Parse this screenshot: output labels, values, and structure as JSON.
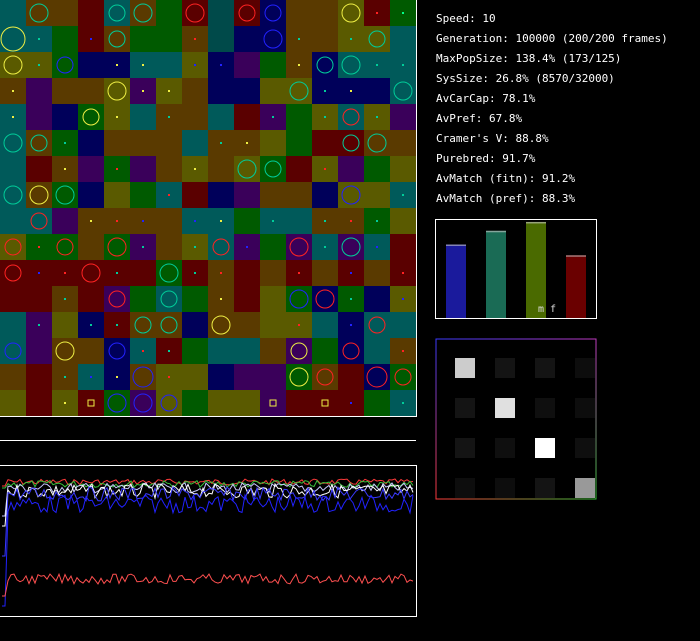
{
  "stats": [
    "Speed: 10",
    "Generation: 100000 (200/200 frames)",
    "MaxPopSize: 138.4% (173/125)",
    "SysSize: 26.8% (8570/32000)",
    "AvCarCap: 78.1%",
    "AvPref: 67.8%",
    "Cramer's V: 88.8%",
    "Purebred: 91.7%",
    "AvMatch (fitn): 91.2%",
    "AvMatch (pref): 88.3%"
  ],
  "bar_chart": {
    "bars": [
      {
        "value": 0.75,
        "color": "#1a1a9c"
      },
      {
        "value": 0.89,
        "color": "#1a6b55"
      },
      {
        "value": 0.98,
        "color": "#4a6a00"
      },
      {
        "value": 0.64,
        "color": "#6a0000"
      }
    ],
    "label": "m f"
  },
  "matrix": {
    "cells": [
      [
        0.8,
        0.08,
        0.08,
        0.05
      ],
      [
        0.08,
        0.88,
        0.06,
        0.05
      ],
      [
        0.08,
        0.06,
        1.0,
        0.06
      ],
      [
        0.05,
        0.05,
        0.08,
        0.6
      ]
    ]
  },
  "grid": {
    "cols": 16,
    "rows": 16,
    "palette": [
      "#00005a",
      "#005a5a",
      "#5a5a00",
      "#5a0000",
      "#3a005a",
      "#005a00",
      "#5a3a00",
      "#004a4a"
    ],
    "cells": [
      [
        1,
        6,
        6,
        3,
        1,
        6,
        5,
        3,
        7,
        3,
        0,
        6,
        6,
        2,
        3,
        5
      ],
      [
        1,
        1,
        5,
        3,
        6,
        5,
        5,
        6,
        7,
        0,
        0,
        6,
        6,
        2,
        2,
        1
      ],
      [
        2,
        2,
        5,
        0,
        0,
        1,
        1,
        2,
        0,
        4,
        5,
        6,
        0,
        1,
        1,
        1
      ],
      [
        6,
        4,
        6,
        6,
        2,
        4,
        2,
        6,
        0,
        0,
        2,
        2,
        0,
        0,
        0,
        1
      ],
      [
        1,
        4,
        0,
        5,
        2,
        1,
        6,
        6,
        1,
        3,
        4,
        5,
        2,
        1,
        2,
        4
      ],
      [
        1,
        6,
        5,
        0,
        6,
        6,
        6,
        1,
        6,
        6,
        2,
        5,
        3,
        3,
        6,
        6
      ],
      [
        1,
        3,
        6,
        4,
        5,
        4,
        6,
        2,
        6,
        2,
        5,
        3,
        2,
        4,
        5,
        2
      ],
      [
        1,
        6,
        5,
        0,
        2,
        5,
        1,
        3,
        0,
        4,
        6,
        6,
        0,
        2,
        2,
        1
      ],
      [
        1,
        1,
        4,
        6,
        6,
        6,
        6,
        1,
        1,
        5,
        1,
        1,
        6,
        6,
        5,
        2
      ],
      [
        2,
        5,
        5,
        6,
        5,
        4,
        6,
        2,
        1,
        4,
        5,
        4,
        1,
        4,
        1,
        3
      ],
      [
        3,
        3,
        3,
        3,
        3,
        3,
        5,
        3,
        6,
        3,
        6,
        3,
        6,
        3,
        6,
        3
      ],
      [
        3,
        3,
        6,
        3,
        4,
        5,
        1,
        5,
        6,
        3,
        2,
        5,
        0,
        5,
        0,
        2
      ],
      [
        1,
        4,
        2,
        0,
        3,
        6,
        6,
        0,
        6,
        6,
        2,
        2,
        1,
        0,
        1,
        1
      ],
      [
        1,
        4,
        6,
        6,
        0,
        1,
        3,
        5,
        1,
        1,
        6,
        4,
        5,
        0,
        1,
        6
      ],
      [
        6,
        3,
        6,
        1,
        0,
        6,
        2,
        2,
        0,
        4,
        4,
        5,
        6,
        3,
        0,
        5
      ],
      [
        2,
        3,
        2,
        3,
        5,
        4,
        2,
        5,
        2,
        2,
        4,
        3,
        3,
        3,
        5,
        1
      ]
    ],
    "circles": [
      [
        0,
        1,
        "#0c9",
        9
      ],
      [
        0,
        4,
        "#0c9",
        8
      ],
      [
        0,
        5,
        "#0c9",
        9
      ],
      [
        0,
        7,
        "#f22",
        9
      ],
      [
        0,
        9,
        "#f22",
        8
      ],
      [
        0,
        10,
        "#22f",
        8
      ],
      [
        0,
        13,
        "#ee4",
        9
      ],
      [
        0,
        14,
        "#f22",
        2
      ],
      [
        0,
        15,
        "#0f8",
        2
      ],
      [
        1,
        0,
        "#ee4",
        12
      ],
      [
        1,
        1,
        "#0c9",
        2
      ],
      [
        1,
        3,
        "#22f",
        2
      ],
      [
        1,
        4,
        "#0c9",
        8
      ],
      [
        1,
        7,
        "#f22",
        2
      ],
      [
        1,
        10,
        "#22f",
        9
      ],
      [
        1,
        11,
        "#0c9",
        2
      ],
      [
        1,
        13,
        "#0c9",
        2
      ],
      [
        1,
        14,
        "#0c9",
        8
      ],
      [
        2,
        0,
        "#ee4",
        9
      ],
      [
        2,
        1,
        "#0c9",
        2
      ],
      [
        2,
        2,
        "#22f",
        8
      ],
      [
        2,
        4,
        "#ee4",
        2
      ],
      [
        2,
        5,
        "#ee4",
        2
      ],
      [
        2,
        7,
        "#22f",
        2
      ],
      [
        2,
        8,
        "#22f",
        2
      ],
      [
        2,
        11,
        "#ee4",
        2
      ],
      [
        2,
        12,
        "#0c9",
        8
      ],
      [
        2,
        13,
        "#0c9",
        9
      ],
      [
        2,
        14,
        "#0c9",
        2
      ],
      [
        2,
        15,
        "#0c9",
        2
      ],
      [
        3,
        0,
        "#ee4",
        2
      ],
      [
        3,
        4,
        "#ee4",
        9
      ],
      [
        3,
        5,
        "#ee4",
        2
      ],
      [
        3,
        6,
        "#ee4",
        2
      ],
      [
        3,
        11,
        "#0c9",
        9
      ],
      [
        3,
        12,
        "#0c9",
        2
      ],
      [
        3,
        13,
        "#ee4",
        2
      ],
      [
        3,
        15,
        "#0c9",
        9
      ],
      [
        4,
        0,
        "#ee4",
        2
      ],
      [
        4,
        3,
        "#ee4",
        8
      ],
      [
        4,
        4,
        "#ee4",
        2
      ],
      [
        4,
        6,
        "#0c9",
        2
      ],
      [
        4,
        10,
        "#0c9",
        2
      ],
      [
        4,
        12,
        "#0c9",
        2
      ],
      [
        4,
        13,
        "#f22",
        8
      ],
      [
        4,
        14,
        "#0c9",
        2
      ],
      [
        5,
        0,
        "#0c9",
        9
      ],
      [
        5,
        1,
        "#0c9",
        8
      ],
      [
        5,
        2,
        "#0c9",
        2
      ],
      [
        5,
        8,
        "#0c9",
        2
      ],
      [
        5,
        9,
        "#ee4",
        2
      ],
      [
        5,
        13,
        "#0c9",
        8
      ],
      [
        5,
        14,
        "#0c9",
        9
      ],
      [
        6,
        2,
        "#ee4",
        2
      ],
      [
        6,
        4,
        "#f22",
        2
      ],
      [
        6,
        7,
        "#ee4",
        2
      ],
      [
        6,
        9,
        "#0c9",
        9
      ],
      [
        6,
        10,
        "#0c9",
        8
      ],
      [
        6,
        12,
        "#f22",
        2
      ],
      [
        7,
        0,
        "#0c9",
        9
      ],
      [
        7,
        1,
        "#ee4",
        9
      ],
      [
        7,
        2,
        "#0c9",
        9
      ],
      [
        7,
        6,
        "#f22",
        2
      ],
      [
        7,
        13,
        "#22f",
        9
      ],
      [
        7,
        15,
        "#0c9",
        2
      ],
      [
        8,
        1,
        "#f22",
        8
      ],
      [
        8,
        3,
        "#ee4",
        2
      ],
      [
        8,
        4,
        "#f22",
        2
      ],
      [
        8,
        5,
        "#22f",
        2
      ],
      [
        8,
        7,
        "#22f",
        2
      ],
      [
        8,
        8,
        "#ee4",
        2
      ],
      [
        8,
        10,
        "#0c9",
        2
      ],
      [
        8,
        12,
        "#0c9",
        2
      ],
      [
        8,
        13,
        "#f22",
        2
      ],
      [
        8,
        14,
        "#0c9",
        2
      ],
      [
        9,
        0,
        "#f22",
        8
      ],
      [
        9,
        1,
        "#f22",
        2
      ],
      [
        9,
        2,
        "#f22",
        8
      ],
      [
        9,
        4,
        "#f22",
        9
      ],
      [
        9,
        5,
        "#0c9",
        2
      ],
      [
        9,
        7,
        "#0c9",
        2
      ],
      [
        9,
        8,
        "#f22",
        8
      ],
      [
        9,
        9,
        "#22f",
        2
      ],
      [
        9,
        11,
        "#f22",
        9
      ],
      [
        9,
        12,
        "#0c9",
        2
      ],
      [
        9,
        13,
        "#0c9",
        9
      ],
      [
        9,
        14,
        "#22f",
        2
      ],
      [
        10,
        0,
        "#f22",
        8
      ],
      [
        10,
        1,
        "#22f",
        2
      ],
      [
        10,
        2,
        "#f22",
        2
      ],
      [
        10,
        3,
        "#f22",
        9
      ],
      [
        10,
        4,
        "#0c9",
        2
      ],
      [
        10,
        6,
        "#0c9",
        9
      ],
      [
        10,
        7,
        "#0c9",
        2
      ],
      [
        10,
        8,
        "#f22",
        2
      ],
      [
        10,
        11,
        "#f22",
        2
      ],
      [
        10,
        13,
        "#22f",
        2
      ],
      [
        10,
        15,
        "#f22",
        2
      ],
      [
        11,
        2,
        "#0c9",
        2
      ],
      [
        11,
        4,
        "#f22",
        8
      ],
      [
        11,
        6,
        "#0c9",
        8
      ],
      [
        11,
        8,
        "#ee4",
        2
      ],
      [
        11,
        11,
        "#22f",
        9
      ],
      [
        11,
        12,
        "#f22",
        9
      ],
      [
        11,
        13,
        "#0c9",
        2
      ],
      [
        11,
        15,
        "#22f",
        2
      ],
      [
        12,
        1,
        "#0c9",
        2
      ],
      [
        12,
        3,
        "#0c9",
        2
      ],
      [
        12,
        4,
        "#0c9",
        2
      ],
      [
        12,
        5,
        "#0c9",
        8
      ],
      [
        12,
        6,
        "#0c9",
        8
      ],
      [
        12,
        8,
        "#ee4",
        9
      ],
      [
        12,
        11,
        "#f22",
        2
      ],
      [
        12,
        13,
        "#22f",
        2
      ],
      [
        12,
        14,
        "#f22",
        8
      ],
      [
        13,
        0,
        "#22f",
        8
      ],
      [
        13,
        2,
        "#ee4",
        9
      ],
      [
        13,
        4,
        "#22f",
        8
      ],
      [
        13,
        5,
        "#f22",
        2
      ],
      [
        13,
        6,
        "#0c9",
        2
      ],
      [
        13,
        11,
        "#ee4",
        8
      ],
      [
        13,
        13,
        "#f22",
        8
      ],
      [
        13,
        15,
        "#f22",
        2
      ],
      [
        14,
        2,
        "#0c9",
        2
      ],
      [
        14,
        3,
        "#22f",
        2
      ],
      [
        14,
        4,
        "#ee4",
        2
      ],
      [
        14,
        5,
        "#22f",
        10
      ],
      [
        14,
        6,
        "#f22",
        2
      ],
      [
        14,
        11,
        "#ee4",
        9
      ],
      [
        14,
        12,
        "#f22",
        8
      ],
      [
        14,
        14,
        "#f22",
        10
      ],
      [
        14,
        15,
        "#f22",
        8
      ],
      [
        15,
        2,
        "#ee4",
        2
      ],
      [
        15,
        3,
        "#ee4",
        6
      ],
      [
        15,
        4,
        "#22f",
        9
      ],
      [
        15,
        5,
        "#22f",
        9
      ],
      [
        15,
        6,
        "#22f",
        8
      ],
      [
        15,
        10,
        "#ee4",
        6
      ],
      [
        15,
        12,
        "#ee4",
        6
      ],
      [
        15,
        13,
        "#22f",
        2
      ],
      [
        15,
        15,
        "#0c9",
        2
      ]
    ]
  }
}
